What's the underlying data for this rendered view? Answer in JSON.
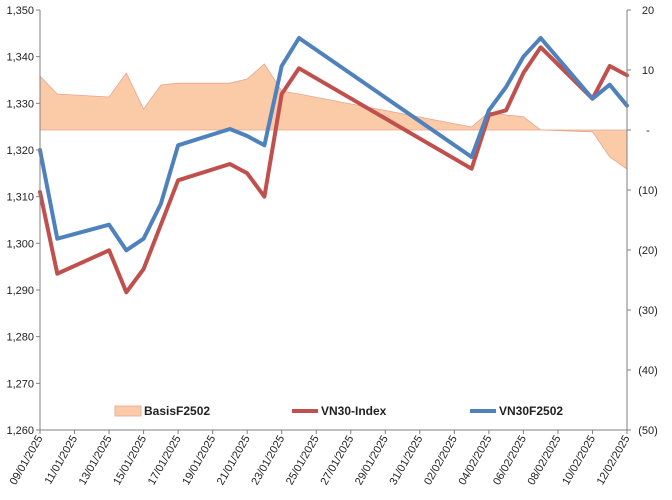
{
  "chart_data": {
    "type": "line",
    "title": "",
    "xlabel": "",
    "ylabel": "",
    "x": [
      "09/01/2025",
      "10/01/2025",
      "13/01/2025",
      "14/01/2025",
      "15/01/2025",
      "16/01/2025",
      "17/01/2025",
      "20/01/2025",
      "21/01/2025",
      "22/01/2025",
      "23/01/2025",
      "24/01/2025",
      "03/02/2025",
      "04/02/2025",
      "05/02/2025",
      "06/02/2025",
      "07/02/2025",
      "10/02/2025",
      "11/02/2025",
      "12/02/2025"
    ],
    "x_tick_labels": [
      "09/01/2025",
      "11/01/2025",
      "13/01/2025",
      "15/01/2025",
      "17/01/2025",
      "19/01/2025",
      "21/01/2025",
      "23/01/2025",
      "25/01/2025",
      "27/01/2025",
      "29/01/2025",
      "31/01/2025",
      "02/02/2025",
      "04/02/2025",
      "06/02/2025",
      "08/02/2025",
      "10/02/2025",
      "12/02/2025"
    ],
    "x_range": [
      "09/01/2025",
      "12/02/2025"
    ],
    "y_left": {
      "range": [
        1260,
        1350
      ],
      "ticks": [
        1260,
        1270,
        1280,
        1290,
        1300,
        1310,
        1320,
        1330,
        1340,
        1350
      ],
      "tick_labels": [
        "1,260",
        "1,270",
        "1,280",
        "1,290",
        "1,300",
        "1,310",
        "1,320",
        "1,330",
        "1,340",
        "1,350"
      ]
    },
    "y_right": {
      "range": [
        -50,
        20
      ],
      "ticks": [
        20,
        10,
        0,
        -10,
        -20,
        -30,
        -40,
        -50
      ],
      "tick_labels": [
        "20",
        "10",
        "-",
        "(10)",
        "(20)",
        "(30)",
        "(40)",
        "(50)"
      ]
    },
    "series": [
      {
        "name": "BasisF2502",
        "kind": "area",
        "axis": "right",
        "color": "#fbcaa6",
        "edge_color": "#e8a58f",
        "values": [
          9.0,
          6.0,
          5.5,
          9.5,
          3.5,
          7.5,
          7.8,
          7.8,
          8.5,
          11.0,
          6.5,
          6.0,
          0.5,
          3.0,
          2.5,
          2.2,
          0.0,
          -0.3,
          -4.5,
          -6.5
        ]
      },
      {
        "name": "VN30-Index",
        "kind": "line",
        "axis": "left",
        "color": "#c0504d",
        "values": [
          1311,
          1293.5,
          1298.5,
          1289.5,
          1294.5,
          1304,
          1313.5,
          1317,
          1315,
          1310,
          1332,
          1337.5,
          1316,
          1327.5,
          1328.5,
          1336.5,
          1342,
          1331,
          1338,
          1336
        ]
      },
      {
        "name": "VN30F2502",
        "kind": "line",
        "axis": "left",
        "color": "#4f81bd",
        "values": [
          1320,
          1301,
          1304,
          1298.5,
          1301,
          1308.5,
          1321,
          1324.5,
          1323,
          1321,
          1338,
          1344,
          1318.5,
          1328.5,
          1333.5,
          1340,
          1344,
          1331,
          1334,
          1329.5
        ]
      }
    ],
    "legend": {
      "position": "bottom-inside",
      "entries": [
        "BasisF2502",
        "VN30-Index",
        "VN30F2502"
      ]
    },
    "grid": false
  }
}
